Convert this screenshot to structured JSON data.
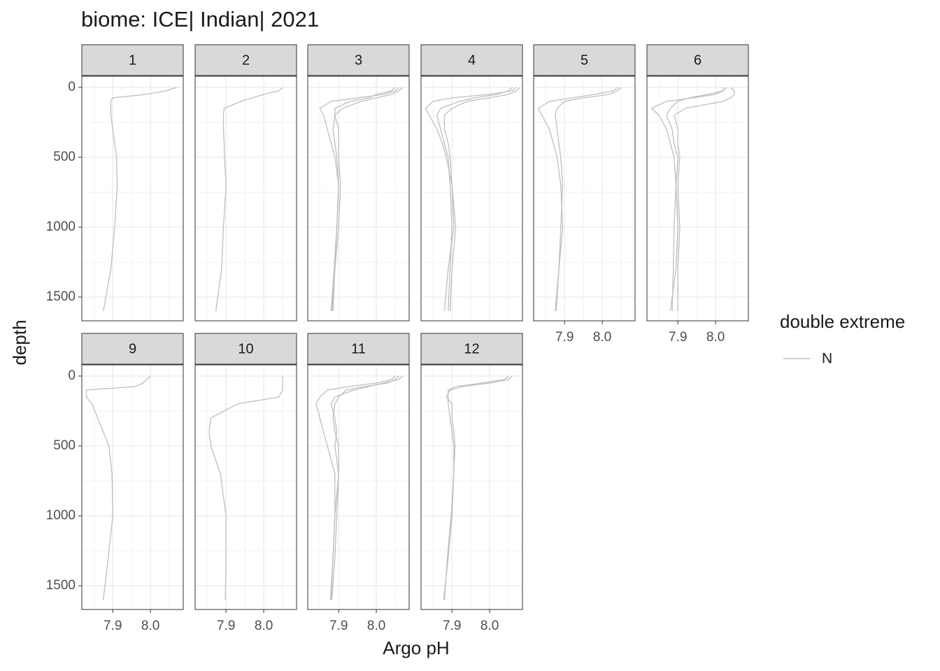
{
  "chart_data": {
    "type": "faceted-line",
    "title": "biome: ICE| Indian| 2021",
    "x_label": "Argo pH",
    "y_label": "depth",
    "legend_title": "double extreme",
    "series": [
      {
        "name": "N",
        "color": "#bebebe"
      }
    ],
    "xlim": [
      7.818,
      8.087
    ],
    "xticks": [
      7.9,
      {
        "value": 8,
        "label": "8.0"
      }
    ],
    "ylim": [
      -80,
      1670
    ],
    "yticks": [
      0,
      500,
      1000,
      1500
    ],
    "y_reversed": true,
    "grid": true,
    "panels": [
      {
        "label": "1",
        "depth": [
          0,
          25,
          50,
          75,
          100,
          150,
          200,
          300,
          400,
          500,
          700,
          1000,
          1300,
          1600
        ],
        "profiles": [
          [
            8.07,
            8.04,
            7.99,
            7.9,
            7.895,
            7.895,
            7.895,
            7.9,
            7.905,
            7.91,
            7.912,
            7.905,
            7.895,
            7.875
          ]
        ]
      },
      {
        "label": "2",
        "depth": [
          0,
          25,
          50,
          75,
          100,
          150,
          200,
          300,
          400,
          500,
          700,
          1000,
          1300,
          1600
        ],
        "profiles": [
          [
            8.05,
            8.04,
            8.0,
            7.97,
            7.94,
            7.895,
            7.893,
            7.893,
            7.895,
            7.896,
            7.9,
            7.893,
            7.888,
            7.873
          ]
        ]
      },
      {
        "label": "3",
        "depth": [
          0,
          25,
          50,
          75,
          100,
          150,
          200,
          300,
          400,
          500,
          700,
          1000,
          1300,
          1600
        ],
        "profiles": [
          [
            8.06,
            8.05,
            8.02,
            7.95,
            7.88,
            7.85,
            7.86,
            7.87,
            7.88,
            7.89,
            7.9,
            7.895,
            7.888,
            7.88
          ],
          [
            8.05,
            8.04,
            8.0,
            7.98,
            7.93,
            7.89,
            7.89,
            7.885,
            7.89,
            7.895,
            7.9,
            7.895,
            7.89,
            7.882
          ],
          [
            8.07,
            8.06,
            8.04,
            8.0,
            7.96,
            7.91,
            7.89,
            7.9,
            7.9,
            7.9,
            7.905,
            7.9,
            7.89,
            7.885
          ]
        ]
      },
      {
        "label": "4",
        "depth": [
          0,
          25,
          50,
          75,
          100,
          150,
          200,
          300,
          400,
          500,
          700,
          1000,
          1300,
          1600
        ],
        "profiles": [
          [
            8.07,
            8.06,
            8.0,
            7.9,
            7.85,
            7.83,
            7.84,
            7.86,
            7.875,
            7.885,
            7.9,
            7.905,
            7.89,
            7.88
          ],
          [
            8.06,
            8.05,
            8.02,
            7.96,
            7.92,
            7.87,
            7.86,
            7.87,
            7.88,
            7.89,
            7.895,
            7.9,
            7.895,
            7.89
          ],
          [
            8.08,
            8.07,
            8.05,
            8.0,
            7.94,
            7.9,
            7.88,
            7.88,
            7.89,
            7.895,
            7.9,
            7.91,
            7.9,
            7.895
          ]
        ]
      },
      {
        "label": "5",
        "depth": [
          0,
          25,
          50,
          75,
          100,
          150,
          200,
          300,
          400,
          500,
          700,
          1000,
          1300,
          1600
        ],
        "profiles": [
          [
            8.04,
            8.03,
            7.98,
            7.92,
            7.86,
            7.83,
            7.84,
            7.86,
            7.87,
            7.88,
            7.89,
            7.895,
            7.885,
            7.875
          ],
          [
            8.05,
            8.04,
            8.02,
            7.95,
            7.9,
            7.88,
            7.875,
            7.88,
            7.885,
            7.89,
            7.895,
            7.89,
            7.885,
            7.878
          ]
        ]
      },
      {
        "label": "6",
        "depth": [
          0,
          25,
          50,
          75,
          100,
          150,
          200,
          300,
          400,
          500,
          700,
          1000,
          1300,
          1600
        ],
        "profiles": [
          [
            8.03,
            8.02,
            8.0,
            7.94,
            7.87,
            7.83,
            7.85,
            7.87,
            7.88,
            7.89,
            7.895,
            7.9,
            7.895,
            7.88
          ],
          [
            8.04,
            8.05,
            8.05,
            8.04,
            8.02,
            7.92,
            7.89,
            7.9,
            7.9,
            7.905,
            7.9,
            7.905,
            7.9,
            7.9
          ],
          [
            8.02,
            8.02,
            7.98,
            7.93,
            7.9,
            7.88,
            7.87,
            7.885,
            7.89,
            7.9,
            7.895,
            7.89,
            7.888,
            7.885
          ]
        ]
      },
      {
        "label": "9",
        "depth": [
          0,
          25,
          50,
          75,
          100,
          150,
          200,
          300,
          400,
          500,
          700,
          1000,
          1300,
          1600
        ],
        "profiles": [
          [
            8.0,
            7.99,
            7.98,
            7.96,
            7.83,
            7.83,
            7.845,
            7.86,
            7.875,
            7.89,
            7.898,
            7.9,
            7.888,
            7.875
          ]
        ]
      },
      {
        "label": "10",
        "depth": [
          0,
          25,
          50,
          75,
          100,
          150,
          200,
          300,
          400,
          500,
          700,
          1000,
          1300,
          1600
        ],
        "profiles": [
          [
            8.05,
            8.05,
            8.05,
            8.05,
            8.05,
            8.04,
            7.93,
            7.86,
            7.855,
            7.86,
            7.885,
            7.9,
            7.9,
            7.898
          ]
        ]
      },
      {
        "label": "11",
        "depth": [
          0,
          25,
          50,
          75,
          100,
          150,
          200,
          300,
          400,
          500,
          700,
          1000,
          1300,
          1600
        ],
        "profiles": [
          [
            8.05,
            8.04,
            8.0,
            7.93,
            7.87,
            7.85,
            7.84,
            7.85,
            7.86,
            7.87,
            7.89,
            7.89,
            7.885,
            7.878
          ],
          [
            8.06,
            8.05,
            8.03,
            7.97,
            7.92,
            7.9,
            7.89,
            7.885,
            7.89,
            7.9,
            7.9,
            7.89,
            7.885,
            7.88
          ],
          [
            8.07,
            8.06,
            8.02,
            7.98,
            7.94,
            7.89,
            7.88,
            7.89,
            7.895,
            7.89,
            7.9,
            7.895,
            7.89,
            7.882
          ]
        ]
      },
      {
        "label": "12",
        "depth": [
          0,
          25,
          50,
          75,
          100,
          150,
          200,
          300,
          400,
          500,
          700,
          1000,
          1300,
          1600
        ],
        "profiles": [
          [
            8.05,
            8.04,
            7.98,
            7.91,
            7.89,
            7.89,
            7.89,
            7.895,
            7.9,
            7.905,
            7.905,
            7.9,
            7.89,
            7.878
          ],
          [
            8.06,
            8.05,
            8.0,
            7.93,
            7.895,
            7.885,
            7.9,
            7.9,
            7.905,
            7.908,
            7.905,
            7.898,
            7.888,
            7.88
          ]
        ]
      }
    ]
  }
}
